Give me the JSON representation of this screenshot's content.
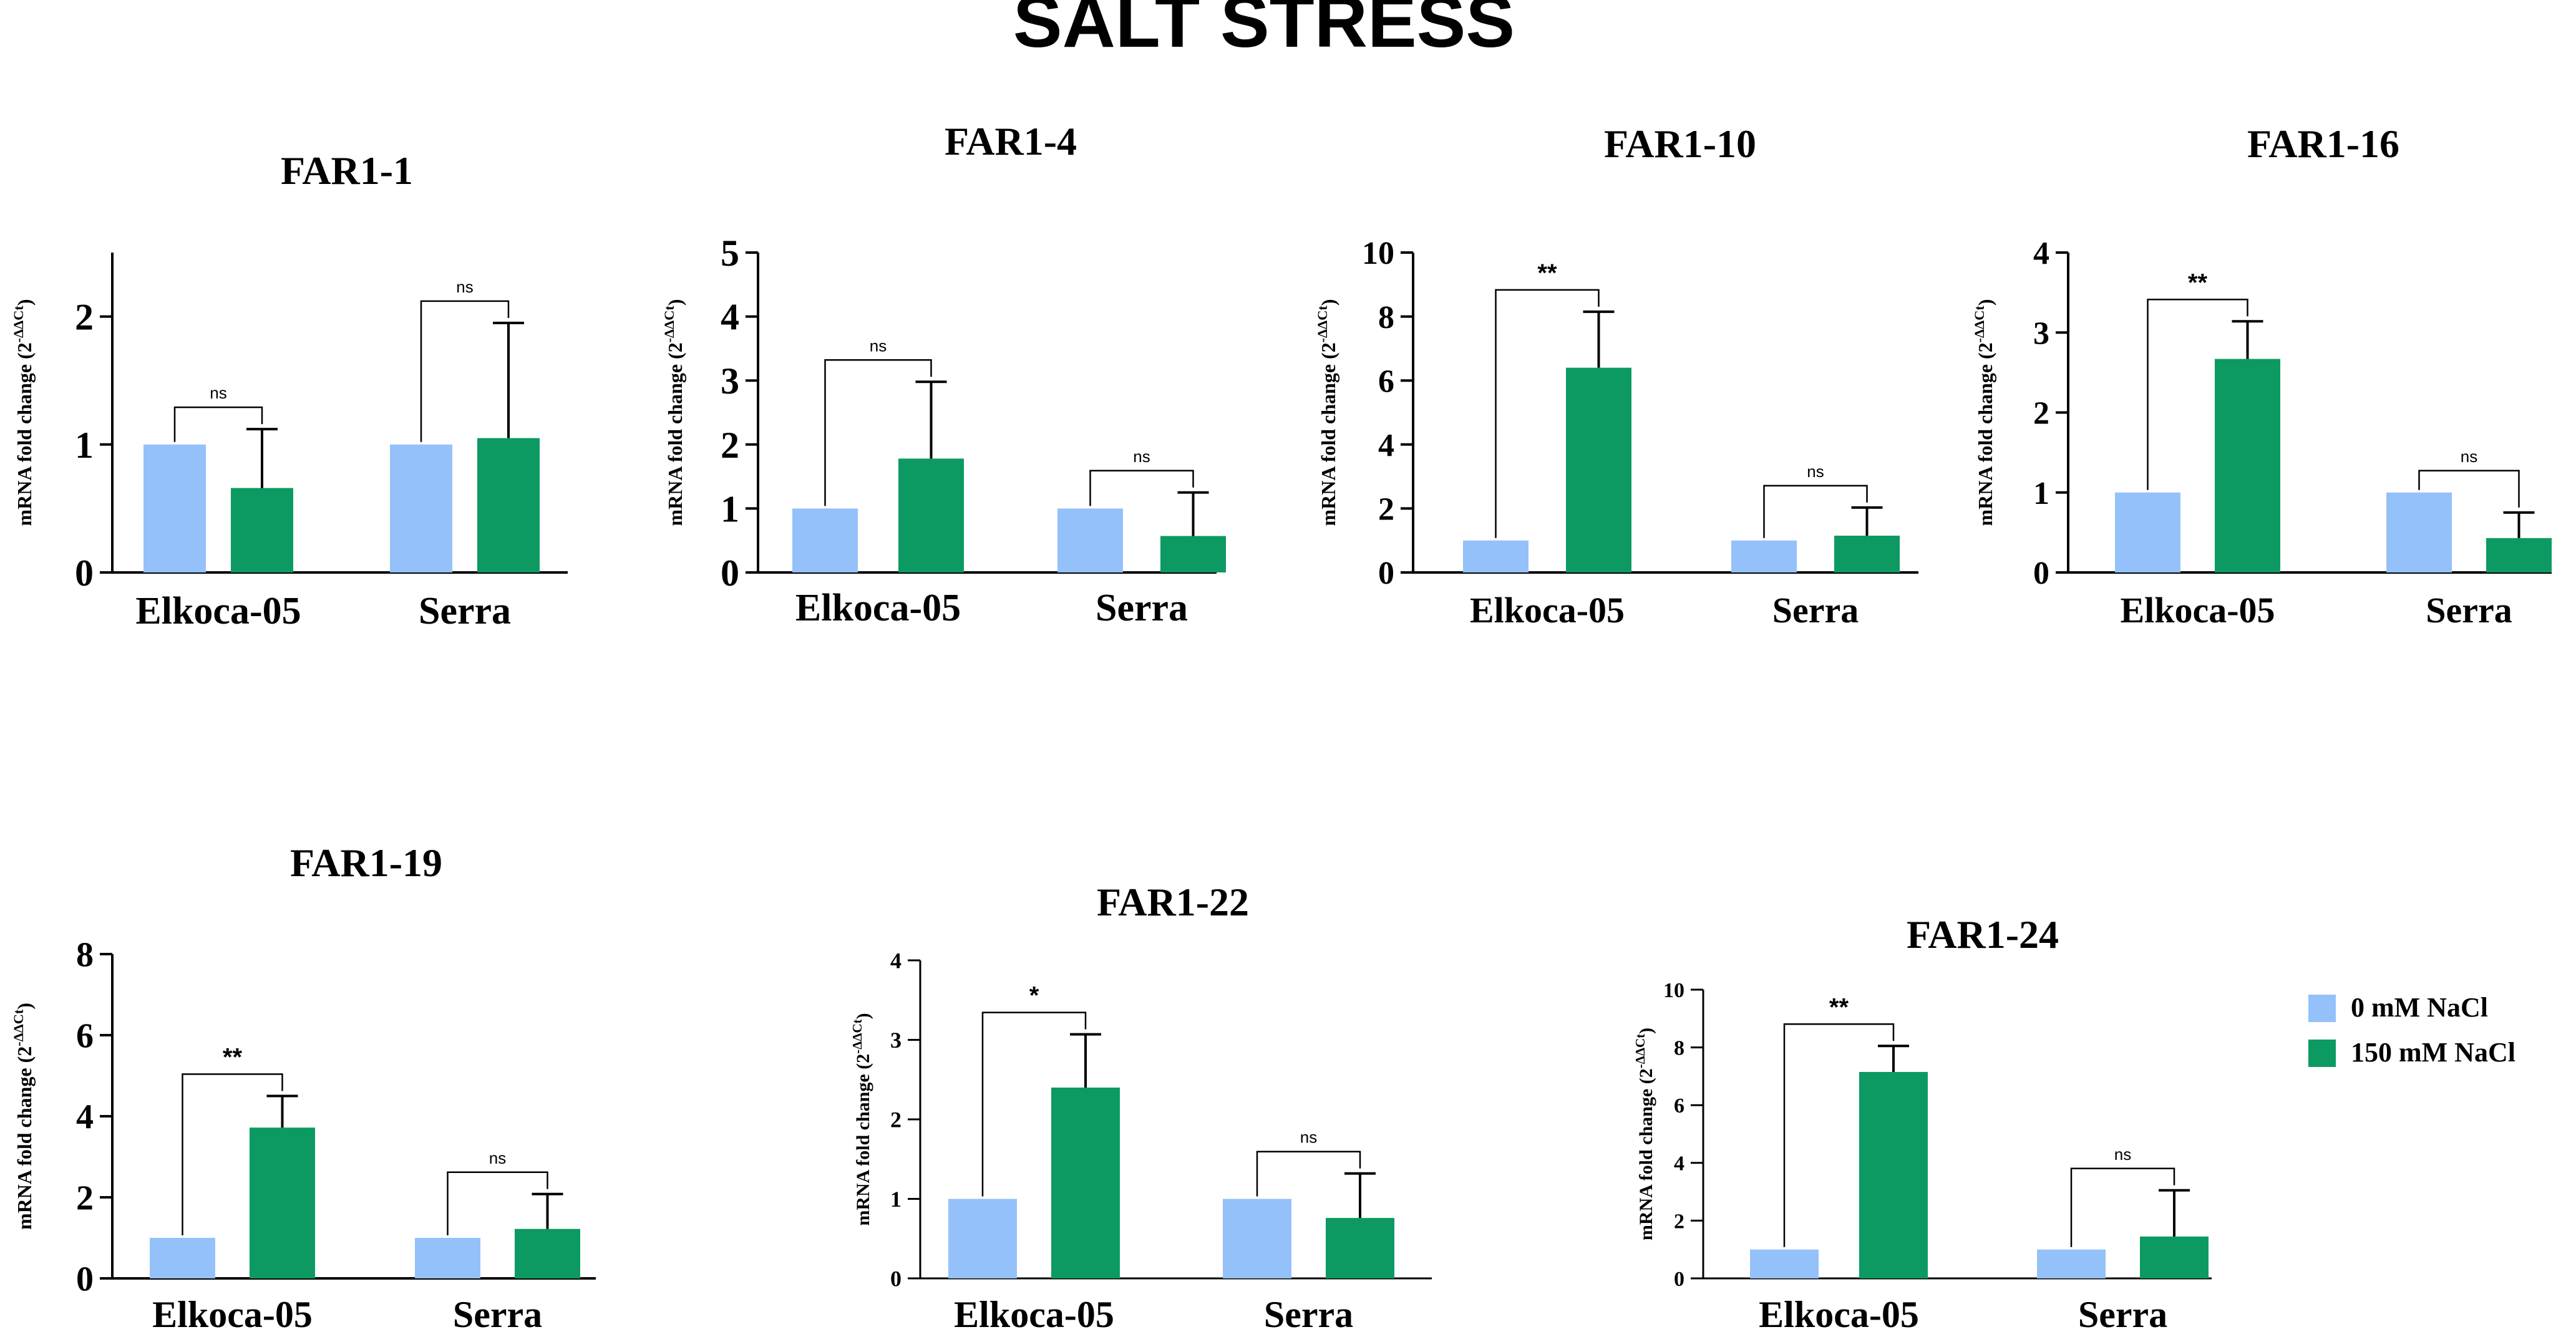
{
  "title": "SALT STRESS",
  "colors": {
    "control": "#94C1FA",
    "treated": "#0C9A62",
    "axis": "#000000"
  },
  "legend": {
    "items": [
      {
        "label": "0 mM NaCl",
        "color": "#94C1FA"
      },
      {
        "label": "150 mM NaCl",
        "color": "#0C9A62"
      }
    ]
  },
  "chart_data": [
    {
      "type": "bar",
      "title": "FAR1-1",
      "ylabel": "mRNA fold change (2",
      "ylabel_sup": "-ΔΔCt",
      "ylabel_end": ")",
      "categories": [
        "Elkoca-05",
        "Serra"
      ],
      "series": [
        {
          "name": "0 mM NaCl",
          "values": [
            1.0,
            1.0
          ],
          "errors": [
            0,
            0
          ]
        },
        {
          "name": "150 mM NaCl",
          "values": [
            0.66,
            1.05
          ],
          "errors": [
            0.46,
            0.9
          ]
        }
      ],
      "ylim": [
        0,
        2.5
      ],
      "yticks": [
        0,
        1,
        2
      ],
      "significance": [
        "ns",
        "ns"
      ]
    },
    {
      "type": "bar",
      "title": "FAR1-4",
      "ylabel": "mRNA fold change (2",
      "ylabel_sup": "-ΔΔCt",
      "ylabel_end": ")",
      "categories": [
        "Elkoca-05",
        "Serra"
      ],
      "series": [
        {
          "name": "0 mM NaCl",
          "values": [
            1.0,
            1.0
          ],
          "errors": [
            0,
            0
          ]
        },
        {
          "name": "150 mM NaCl",
          "values": [
            1.78,
            0.57
          ],
          "errors": [
            1.2,
            0.68
          ]
        }
      ],
      "ylim": [
        0,
        5
      ],
      "yticks": [
        0,
        1,
        2,
        3,
        4,
        5
      ],
      "significance": [
        "ns",
        "ns"
      ]
    },
    {
      "type": "bar",
      "title": "FAR1-10",
      "ylabel": "mRNA fold change (2",
      "ylabel_sup": "-ΔΔCt",
      "ylabel_end": ")",
      "categories": [
        "Elkoca-05",
        "Serra"
      ],
      "series": [
        {
          "name": "0 mM NaCl",
          "values": [
            1.0,
            1.0
          ],
          "errors": [
            0,
            0
          ]
        },
        {
          "name": "150 mM NaCl",
          "values": [
            6.4,
            1.15
          ],
          "errors": [
            1.75,
            0.88
          ]
        }
      ],
      "ylim": [
        0,
        10
      ],
      "yticks": [
        0,
        2,
        4,
        6,
        8,
        10
      ],
      "significance": [
        "**",
        "ns"
      ]
    },
    {
      "type": "bar",
      "title": "FAR1-16",
      "ylabel": "mRNA fold change (2",
      "ylabel_sup": "-ΔΔCt",
      "ylabel_end": ")",
      "categories": [
        "Elkoca-05",
        "Serra"
      ],
      "series": [
        {
          "name": "0 mM NaCl",
          "values": [
            1.0,
            1.0
          ],
          "errors": [
            0,
            0
          ]
        },
        {
          "name": "150 mM NaCl",
          "values": [
            2.67,
            0.43
          ],
          "errors": [
            0.47,
            0.32
          ]
        }
      ],
      "ylim": [
        0,
        4
      ],
      "yticks": [
        0,
        1,
        2,
        3,
        4
      ],
      "significance": [
        "**",
        "ns"
      ]
    },
    {
      "type": "bar",
      "title": "FAR1-19",
      "ylabel": "mRNA fold change (2",
      "ylabel_sup": "-ΔΔCt",
      "ylabel_end": ")",
      "categories": [
        "Elkoca-05",
        "Serra"
      ],
      "series": [
        {
          "name": "0 mM NaCl",
          "values": [
            1.0,
            1.0
          ],
          "errors": [
            0,
            0
          ]
        },
        {
          "name": "150 mM NaCl",
          "values": [
            3.72,
            1.22
          ],
          "errors": [
            0.78,
            0.86
          ]
        }
      ],
      "ylim": [
        0,
        8
      ],
      "yticks": [
        0,
        2,
        4,
        6,
        8
      ],
      "significance": [
        "**",
        "ns"
      ]
    },
    {
      "type": "bar",
      "title": "FAR1-22",
      "ylabel": "mRNA fold change (2",
      "ylabel_sup": "-ΔΔCt",
      "ylabel_end": ")",
      "categories": [
        "Elkoca-05",
        "Serra"
      ],
      "series": [
        {
          "name": "0 mM NaCl",
          "values": [
            1.0,
            1.0
          ],
          "errors": [
            0,
            0
          ]
        },
        {
          "name": "150 mM NaCl",
          "values": [
            2.4,
            0.76
          ],
          "errors": [
            0.67,
            0.56
          ]
        }
      ],
      "ylim": [
        0,
        4
      ],
      "yticks": [
        0,
        1,
        2,
        3,
        4
      ],
      "significance": [
        "*",
        "ns"
      ]
    },
    {
      "type": "bar",
      "title": "FAR1-24",
      "ylabel": "mRNA fold change (2",
      "ylabel_sup": "-ΔΔCt",
      "ylabel_end": ")",
      "categories": [
        "Elkoca-05",
        "Serra"
      ],
      "series": [
        {
          "name": "0 mM NaCl",
          "values": [
            1.0,
            1.0
          ],
          "errors": [
            0,
            0
          ]
        },
        {
          "name": "150 mM NaCl",
          "values": [
            7.15,
            1.45
          ],
          "errors": [
            0.9,
            1.6
          ]
        }
      ],
      "ylim": [
        0,
        10
      ],
      "yticks": [
        0,
        2,
        4,
        6,
        8,
        10
      ],
      "significance": [
        "**",
        "ns"
      ]
    }
  ]
}
